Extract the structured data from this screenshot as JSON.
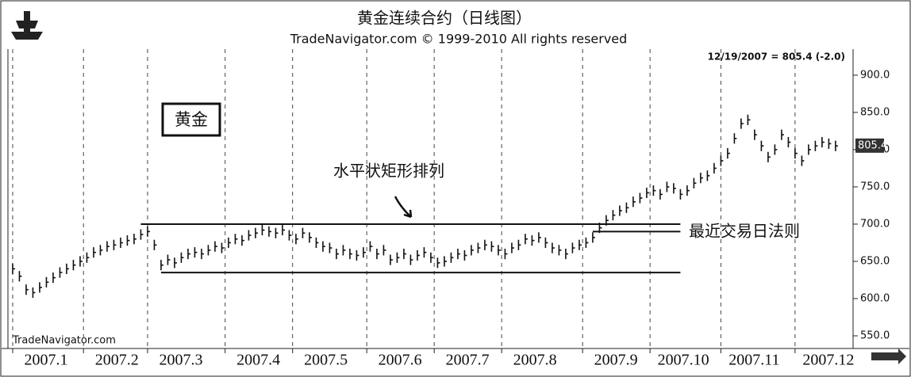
{
  "chart_data": {
    "type": "ohlc",
    "title": "黄金连续合约（日线图）",
    "subtitle": "TradeNavigator.com © 1999-2010 All rights reserved",
    "status": "12/19/2007 = 805.4 (-2.0)",
    "watermark": "TradeNavigator.com",
    "box_label": "黄金",
    "annotations": [
      {
        "text": "水平状矩形排列"
      },
      {
        "text": "最近交易日法则"
      }
    ],
    "last_price": {
      "value": 805.4,
      "label": "805.4"
    },
    "xlim": [
      -1.4,
      249.2
    ],
    "ylim": [
      533,
      935
    ],
    "xticks": [
      {
        "value": 0,
        "label": "2007.1"
      },
      {
        "value": 21,
        "label": "2007.2"
      },
      {
        "value": 40,
        "label": "2007.3"
      },
      {
        "value": 63,
        "label": "2007.4"
      },
      {
        "value": 83,
        "label": "2007.5"
      },
      {
        "value": 105,
        "label": "2007.6"
      },
      {
        "value": 125,
        "label": "2007.7"
      },
      {
        "value": 145,
        "label": "2007.8"
      },
      {
        "value": 169,
        "label": "2007.9"
      },
      {
        "value": 189,
        "label": "2007.10"
      },
      {
        "value": 210,
        "label": "2007.11"
      },
      {
        "value": 232,
        "label": "2007.12"
      }
    ],
    "yticks": [
      {
        "value": 550,
        "label": "550.0"
      },
      {
        "value": 600,
        "label": "600.0"
      },
      {
        "value": 650,
        "label": "650.0"
      },
      {
        "value": 700,
        "label": "700.0"
      },
      {
        "value": 750,
        "label": "750.0"
      },
      {
        "value": 800,
        "label": "800.0"
      },
      {
        "value": 850,
        "label": "850.0"
      },
      {
        "value": 900,
        "label": "900.0"
      }
    ],
    "lines": [
      {
        "y": 700,
        "x": [
          38,
          198
        ]
      },
      {
        "y": 635,
        "x": [
          44,
          198
        ]
      },
      {
        "y": 690,
        "x": [
          172,
          198
        ]
      }
    ],
    "color": "#111111",
    "x": [
      0,
      2,
      4,
      6,
      8,
      10,
      12,
      14,
      16,
      18,
      20,
      22,
      24,
      26,
      28,
      30,
      32,
      34,
      36,
      38,
      40,
      42,
      44,
      46,
      48,
      50,
      52,
      54,
      56,
      58,
      60,
      62,
      64,
      66,
      68,
      70,
      72,
      74,
      76,
      78,
      80,
      82,
      84,
      86,
      88,
      90,
      92,
      94,
      96,
      98,
      100,
      102,
      104,
      106,
      108,
      110,
      112,
      114,
      116,
      118,
      120,
      122,
      124,
      126,
      128,
      130,
      132,
      134,
      136,
      138,
      140,
      142,
      144,
      146,
      148,
      150,
      152,
      154,
      156,
      158,
      160,
      162,
      164,
      166,
      168,
      170,
      172,
      174,
      176,
      178,
      180,
      182,
      184,
      186,
      188,
      190,
      192,
      194,
      196,
      198,
      200,
      202,
      204,
      206,
      208,
      210,
      212,
      214,
      216,
      218,
      220,
      222,
      224,
      226,
      228,
      230,
      232,
      234,
      236,
      238,
      240,
      242,
      244
    ],
    "high": [
      647,
      637,
      619,
      615,
      622,
      629,
      635,
      642,
      647,
      652,
      657,
      662,
      669,
      672,
      677,
      679,
      682,
      685,
      687,
      693,
      697,
      679,
      652,
      659,
      655,
      662,
      667,
      669,
      667,
      672,
      677,
      675,
      682,
      687,
      685,
      692,
      695,
      699,
      697,
      695,
      699,
      692,
      687,
      695,
      689,
      682,
      677,
      675,
      667,
      672,
      667,
      665,
      669,
      677,
      667,
      672,
      659,
      662,
      667,
      659,
      665,
      669,
      662,
      655,
      657,
      662,
      667,
      665,
      672,
      675,
      679,
      677,
      672,
      667,
      675,
      679,
      687,
      685,
      689,
      682,
      675,
      672,
      667,
      675,
      679,
      682,
      689,
      702,
      712,
      719,
      725,
      729,
      737,
      742,
      749,
      752,
      747,
      757,
      755,
      747,
      752,
      762,
      769,
      772,
      782,
      792,
      802,
      822,
      842,
      847,
      827,
      812,
      797,
      807,
      827,
      817,
      802,
      792,
      807,
      812,
      817,
      815,
      812
    ],
    "low": [
      633,
      623,
      605,
      601,
      608,
      615,
      621,
      628,
      633,
      638,
      643,
      648,
      655,
      658,
      663,
      665,
      668,
      671,
      673,
      679,
      683,
      665,
      638,
      645,
      641,
      648,
      653,
      655,
      653,
      658,
      663,
      661,
      668,
      673,
      671,
      678,
      681,
      685,
      683,
      681,
      685,
      678,
      673,
      681,
      675,
      668,
      663,
      661,
      653,
      658,
      653,
      651,
      655,
      663,
      653,
      658,
      645,
      648,
      653,
      645,
      651,
      655,
      648,
      641,
      643,
      648,
      653,
      651,
      658,
      661,
      665,
      663,
      658,
      653,
      661,
      665,
      673,
      671,
      675,
      668,
      661,
      658,
      653,
      661,
      665,
      668,
      675,
      688,
      698,
      705,
      711,
      715,
      723,
      728,
      735,
      738,
      733,
      743,
      741,
      733,
      738,
      748,
      755,
      758,
      768,
      778,
      788,
      808,
      828,
      833,
      813,
      798,
      783,
      793,
      813,
      803,
      788,
      778,
      793,
      798,
      803,
      801,
      798
    ],
    "close": [
      640,
      630,
      612,
      608,
      615,
      622,
      628,
      635,
      640,
      645,
      650,
      655,
      662,
      665,
      670,
      672,
      675,
      678,
      680,
      686,
      690,
      672,
      645,
      652,
      648,
      655,
      660,
      662,
      660,
      665,
      670,
      668,
      675,
      680,
      678,
      685,
      688,
      692,
      690,
      688,
      692,
      685,
      680,
      688,
      682,
      675,
      670,
      668,
      660,
      665,
      660,
      658,
      662,
      670,
      660,
      665,
      652,
      655,
      660,
      652,
      658,
      662,
      655,
      648,
      650,
      655,
      660,
      658,
      665,
      668,
      672,
      670,
      665,
      660,
      668,
      672,
      680,
      678,
      682,
      675,
      668,
      665,
      660,
      668,
      672,
      675,
      682,
      695,
      705,
      712,
      718,
      722,
      730,
      735,
      742,
      745,
      740,
      750,
      748,
      740,
      745,
      755,
      762,
      765,
      775,
      785,
      795,
      815,
      835,
      840,
      820,
      805,
      790,
      800,
      820,
      810,
      795,
      785,
      800,
      805,
      810,
      808,
      805
    ]
  }
}
